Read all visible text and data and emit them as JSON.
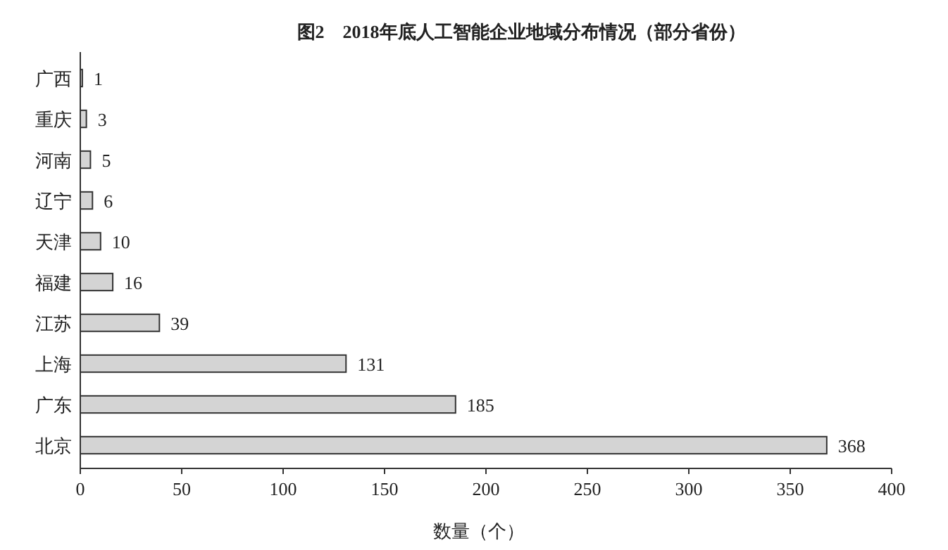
{
  "chart_data": {
    "type": "bar",
    "orientation": "horizontal",
    "title": "图2　2018年底人工智能企业地域分布情况（部分省份）",
    "xlabel": "数量（个）",
    "categories": [
      "广西",
      "重庆",
      "河南",
      "辽宁",
      "天津",
      "福建",
      "江苏",
      "上海",
      "广东",
      "北京"
    ],
    "values": [
      1,
      3,
      5,
      6,
      10,
      16,
      39,
      131,
      185,
      368
    ],
    "color": "#d4d4d4",
    "xlim": [
      0,
      400
    ],
    "xticks": [
      0,
      50,
      100,
      150,
      200,
      250,
      300,
      350,
      400
    ],
    "data_labels": true
  }
}
